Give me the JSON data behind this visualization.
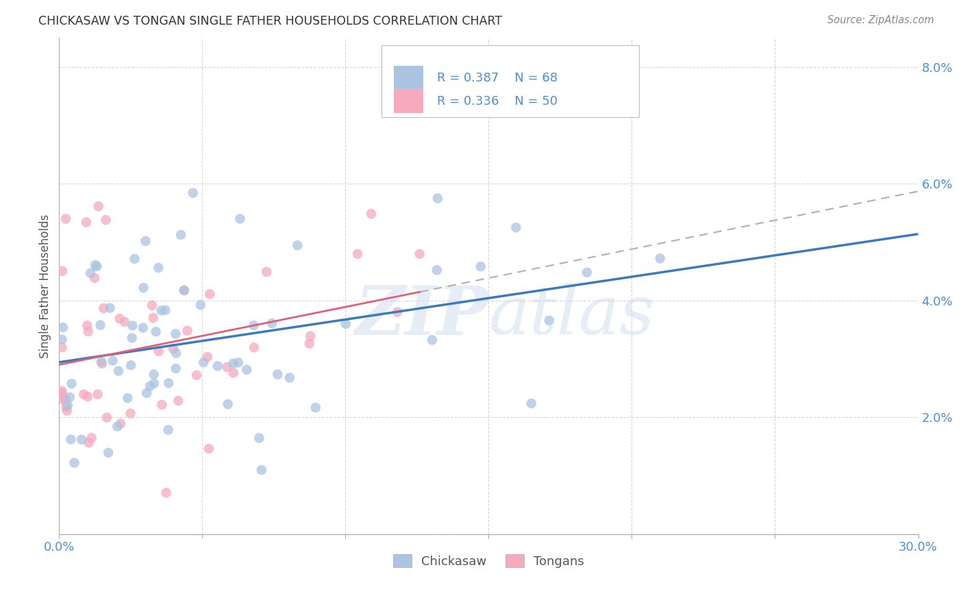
{
  "title": "CHICKASAW VS TONGAN SINGLE FATHER HOUSEHOLDS CORRELATION CHART",
  "source": "Source: ZipAtlas.com",
  "ylabel": "Single Father Households",
  "x_min": 0.0,
  "x_max": 0.3,
  "y_min": 0.0,
  "y_max": 0.085,
  "chickasaw_R": 0.387,
  "chickasaw_N": 68,
  "tongan_R": 0.336,
  "tongan_N": 50,
  "chickasaw_color": "#aac4e2",
  "tongan_color": "#f5aabe",
  "chickasaw_line_color": "#3a7abf",
  "tongan_line_color": "#e0607a",
  "tongan_dash_color": "#ccaabb",
  "watermark": "ZIPatlas",
  "background_color": "#ffffff",
  "grid_color": "#cccccc",
  "legend_text_color": "#4a90d9",
  "title_color": "#333333",
  "source_color": "#888888",
  "ylabel_color": "#555555"
}
